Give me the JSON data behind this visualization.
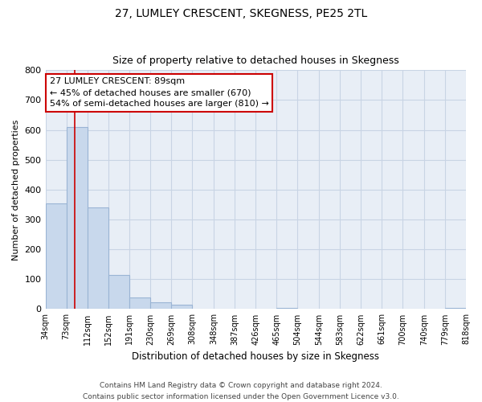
{
  "title": "27, LUMLEY CRESCENT, SKEGNESS, PE25 2TL",
  "subtitle": "Size of property relative to detached houses in Skegness",
  "xlabel": "Distribution of detached houses by size in Skegness",
  "ylabel": "Number of detached properties",
  "bin_edges": [
    34,
    73,
    112,
    152,
    191,
    230,
    269,
    308,
    348,
    387,
    426,
    465,
    504,
    544,
    583,
    622,
    661,
    700,
    740,
    779,
    818
  ],
  "bar_heights": [
    355,
    610,
    340,
    113,
    40,
    22,
    14,
    0,
    0,
    0,
    0,
    5,
    0,
    0,
    0,
    0,
    0,
    0,
    0,
    5
  ],
  "bar_color": "#c8d8ec",
  "bar_edge_color": "#9ab4d4",
  "property_line_x": 89,
  "property_line_color": "#cc0000",
  "ylim": [
    0,
    800
  ],
  "yticks": [
    0,
    100,
    200,
    300,
    400,
    500,
    600,
    700,
    800
  ],
  "annotation_line1": "27 LUMLEY CRESCENT: 89sqm",
  "annotation_line2": "← 45% of detached houses are smaller (670)",
  "annotation_line3": "54% of semi-detached houses are larger (810) →",
  "annotation_box_color": "#ffffff",
  "annotation_box_edge": "#cc0000",
  "footer_line1": "Contains HM Land Registry data © Crown copyright and database right 2024.",
  "footer_line2": "Contains public sector information licensed under the Open Government Licence v3.0.",
  "grid_color": "#c8d4e4",
  "background_color": "#e8eef6",
  "title_fontsize": 10,
  "subtitle_fontsize": 9,
  "ylabel_fontsize": 8,
  "xlabel_fontsize": 8.5,
  "tick_fontsize": 7,
  "annotation_fontsize": 8,
  "footer_fontsize": 6.5
}
